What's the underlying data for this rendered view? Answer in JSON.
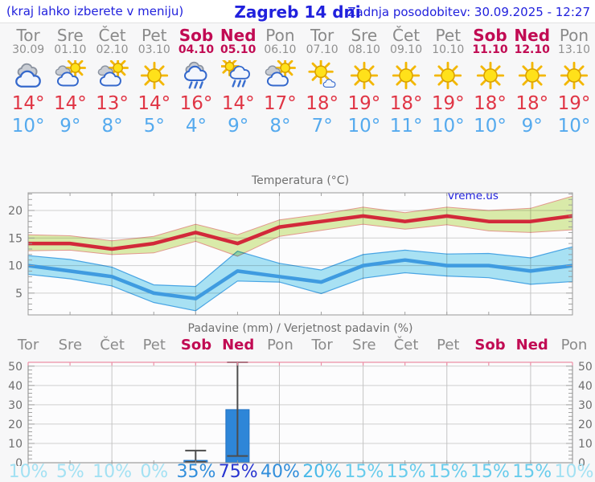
{
  "header": {
    "hint": "(kraj lahko izberete v meniju)",
    "title": "Zagreb 14 dni",
    "updated": "Zadnja posodobitev: 30.09.2025 - 12:27"
  },
  "days": [
    {
      "name": "Tor",
      "date": "30.09",
      "weekend": false,
      "icon": "cloudy",
      "tmax": 14,
      "tmin": 10,
      "prob": 10
    },
    {
      "name": "Sre",
      "date": "01.10",
      "weekend": false,
      "icon": "partly-cloudy",
      "tmax": 14,
      "tmin": 9,
      "prob": 5
    },
    {
      "name": "Čet",
      "date": "02.10",
      "weekend": false,
      "icon": "partly-cloudy",
      "tmax": 13,
      "tmin": 8,
      "prob": 10
    },
    {
      "name": "Pet",
      "date": "03.10",
      "weekend": false,
      "icon": "sunny",
      "tmax": 14,
      "tmin": 5,
      "prob": 0
    },
    {
      "name": "Sob",
      "date": "04.10",
      "weekend": true,
      "icon": "rain",
      "tmax": 16,
      "tmin": 4,
      "prob": 35
    },
    {
      "name": "Ned",
      "date": "05.10",
      "weekend": true,
      "icon": "sun-rain",
      "tmax": 14,
      "tmin": 9,
      "prob": 75
    },
    {
      "name": "Pon",
      "date": "06.10",
      "weekend": false,
      "icon": "partly-cloudy",
      "tmax": 17,
      "tmin": 8,
      "prob": 40
    },
    {
      "name": "Tor",
      "date": "07.10",
      "weekend": false,
      "icon": "mostly-sunny",
      "tmax": 18,
      "tmin": 7,
      "prob": 20
    },
    {
      "name": "Sre",
      "date": "08.10",
      "weekend": false,
      "icon": "sunny",
      "tmax": 19,
      "tmin": 10,
      "prob": 15
    },
    {
      "name": "Čet",
      "date": "09.10",
      "weekend": false,
      "icon": "sunny",
      "tmax": 18,
      "tmin": 11,
      "prob": 15
    },
    {
      "name": "Pet",
      "date": "10.10",
      "weekend": false,
      "icon": "sunny",
      "tmax": 19,
      "tmin": 10,
      "prob": 15
    },
    {
      "name": "Sob",
      "date": "11.10",
      "weekend": true,
      "icon": "sunny",
      "tmax": 18,
      "tmin": 10,
      "prob": 15
    },
    {
      "name": "Ned",
      "date": "12.10",
      "weekend": true,
      "icon": "sunny",
      "tmax": 18,
      "tmin": 9,
      "prob": 15
    },
    {
      "name": "Pon",
      "date": "13.10",
      "weekend": false,
      "icon": "sunny",
      "tmax": 19,
      "tmin": 10,
      "prob": 10
    }
  ],
  "colors": {
    "header_blue": "#2121dd",
    "weekend_red": "#c10b53",
    "day_gray": "#8a8a8a",
    "tmax_red": "#e03545",
    "tmin_blue": "#55aaee",
    "bar_blue": "#2e86d8",
    "whisker_gray": "#4d4d4d",
    "grid_gray": "#cfcfcf",
    "frame_gray": "#999999",
    "pink_axis": "#ec8fa6"
  },
  "prob_colors": [
    {
      "min": 70,
      "color": "#2633d0"
    },
    {
      "min": 35,
      "color": "#318edb"
    },
    {
      "min": 20,
      "color": "#49b9e8"
    },
    {
      "min": 15,
      "color": "#68ccec"
    },
    {
      "min": 0,
      "color": "#a3e1f3"
    }
  ],
  "chart_data": [
    {
      "type": "line",
      "title": "Temperatura (°C)",
      "watermark": "vreme.us",
      "categories": [
        "Tor",
        "Sre",
        "Čet",
        "Pet",
        "Sob",
        "Ned",
        "Pon",
        "Tor",
        "Sre",
        "Čet",
        "Pet",
        "Sob",
        "Ned",
        "Pon"
      ],
      "ylim": [
        1,
        23.2
      ],
      "yticks": [
        5,
        10,
        15,
        20
      ],
      "x_grid_indices": [
        2,
        4,
        6,
        8,
        10,
        12
      ],
      "legend": "none",
      "series": [
        {
          "name": "max temperature",
          "color": "#d2293a",
          "band_color": "#dcedaa",
          "band_edge": "#e59a8e",
          "values": [
            14,
            14,
            13,
            14,
            16,
            14,
            17,
            18,
            19,
            18,
            19,
            18,
            18,
            19
          ],
          "upper": [
            15.6,
            15.4,
            14.5,
            15.3,
            17.5,
            15.6,
            18.3,
            19.3,
            20.6,
            19.6,
            20.6,
            20.0,
            20.4,
            22.6
          ],
          "lower": [
            12.7,
            12.8,
            12.0,
            12.3,
            14.4,
            11.7,
            15.3,
            16.4,
            17.5,
            16.6,
            17.4,
            16.3,
            16.0,
            16.5
          ]
        },
        {
          "name": "min temperature",
          "color": "#3f9be0",
          "band_color": "#aae4f5",
          "band_edge": "#4aa7e6",
          "values": [
            10,
            9,
            8,
            5,
            4,
            9,
            8,
            7,
            10,
            11,
            10,
            10,
            9,
            10
          ],
          "upper": [
            11.8,
            11.1,
            9.7,
            6.5,
            6.2,
            12.6,
            10.4,
            9.2,
            12.0,
            12.8,
            12.1,
            12.2,
            11.4,
            13.4
          ],
          "lower": [
            8.4,
            7.6,
            6.3,
            3.3,
            1.8,
            7.2,
            7.0,
            4.9,
            7.7,
            8.7,
            8.1,
            7.8,
            6.6,
            7.1
          ]
        }
      ]
    },
    {
      "type": "bar",
      "title": "Padavine (mm) / Verjetnost padavin (%)",
      "categories": [
        "Tor",
        "Sre",
        "Čet",
        "Pet",
        "Sob",
        "Ned",
        "Pon",
        "Tor",
        "Sre",
        "Čet",
        "Pet",
        "Sob",
        "Ned",
        "Pon"
      ],
      "values": [
        0,
        0,
        0,
        0,
        1.2,
        27.5,
        0,
        0,
        0,
        0,
        0,
        0,
        0,
        0
      ],
      "whisker_low": [
        null,
        null,
        null,
        null,
        0.4,
        3.5,
        null,
        null,
        null,
        null,
        null,
        null,
        null,
        null
      ],
      "whisker_high": [
        null,
        null,
        null,
        null,
        6.3,
        52,
        null,
        null,
        null,
        null,
        null,
        null,
        null,
        null
      ],
      "probabilities": [
        10,
        5,
        10,
        0,
        35,
        75,
        40,
        20,
        15,
        15,
        15,
        15,
        15,
        10
      ],
      "ylim": [
        0,
        52
      ],
      "yticks": [
        0,
        10,
        20,
        30,
        40,
        50
      ],
      "x_grid_indices": [
        2,
        4,
        6,
        8,
        10,
        12
      ]
    }
  ]
}
